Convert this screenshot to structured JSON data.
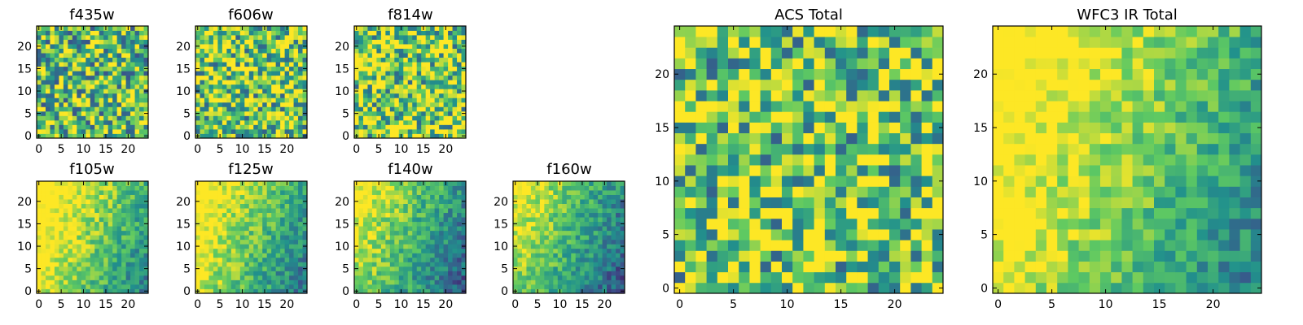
{
  "figure": {
    "description": "Multi-band pixel image panels"
  },
  "chart_data": [
    {
      "type": "heatmap",
      "title": "f435w",
      "grid": [
        25,
        25
      ],
      "xlim": [
        -0.5,
        24.5
      ],
      "ylim": [
        -0.5,
        24.5
      ],
      "xticks": [
        0,
        5,
        10,
        15,
        20
      ],
      "yticks": [
        0,
        5,
        10,
        15,
        20
      ],
      "colormap": "viridis",
      "pattern": "noise",
      "seed": 11,
      "bias": 0.05
    },
    {
      "type": "heatmap",
      "title": "f606w",
      "grid": [
        25,
        25
      ],
      "xlim": [
        -0.5,
        24.5
      ],
      "ylim": [
        -0.5,
        24.5
      ],
      "xticks": [
        0,
        5,
        10,
        15,
        20
      ],
      "yticks": [
        0,
        5,
        10,
        15,
        20
      ],
      "colormap": "viridis",
      "pattern": "noise",
      "seed": 22,
      "bias": 0.1
    },
    {
      "type": "heatmap",
      "title": "f814w",
      "grid": [
        25,
        25
      ],
      "xlim": [
        -0.5,
        24.5
      ],
      "ylim": [
        -0.5,
        24.5
      ],
      "xticks": [
        0,
        5,
        10,
        15,
        20
      ],
      "yticks": [
        0,
        5,
        10,
        15,
        20
      ],
      "colormap": "viridis",
      "pattern": "noise",
      "seed": 33,
      "bias": 0.12
    },
    {
      "type": "heatmap",
      "title": "f105w",
      "grid": [
        25,
        25
      ],
      "xlim": [
        -0.5,
        24.5
      ],
      "ylim": [
        -0.5,
        24.5
      ],
      "xticks": [
        0,
        5,
        10,
        15,
        20
      ],
      "yticks": [
        0,
        5,
        10,
        15,
        20
      ],
      "colormap": "viridis",
      "pattern": "gradient",
      "seed": 44,
      "bias": 0.05
    },
    {
      "type": "heatmap",
      "title": "f125w",
      "grid": [
        25,
        25
      ],
      "xlim": [
        -0.5,
        24.5
      ],
      "ylim": [
        -0.5,
        24.5
      ],
      "xticks": [
        0,
        5,
        10,
        15,
        20
      ],
      "yticks": [
        0,
        5,
        10,
        15,
        20
      ],
      "colormap": "viridis",
      "pattern": "gradient",
      "seed": 55,
      "bias": 0.0
    },
    {
      "type": "heatmap",
      "title": "f140w",
      "grid": [
        25,
        25
      ],
      "xlim": [
        -0.5,
        24.5
      ],
      "ylim": [
        -0.5,
        24.5
      ],
      "xticks": [
        0,
        5,
        10,
        15,
        20
      ],
      "yticks": [
        0,
        5,
        10,
        15,
        20
      ],
      "colormap": "viridis",
      "pattern": "gradient",
      "seed": 66,
      "bias": -0.08
    },
    {
      "type": "heatmap",
      "title": "f160w",
      "grid": [
        25,
        25
      ],
      "xlim": [
        -0.5,
        24.5
      ],
      "ylim": [
        -0.5,
        24.5
      ],
      "xticks": [
        0,
        5,
        10,
        15,
        20
      ],
      "yticks": [
        0,
        5,
        10,
        15,
        20
      ],
      "colormap": "viridis",
      "pattern": "gradient",
      "seed": 77,
      "bias": -0.1
    },
    {
      "type": "heatmap",
      "title": "ACS Total",
      "grid": [
        25,
        25
      ],
      "xlim": [
        -0.5,
        24.5
      ],
      "ylim": [
        -0.5,
        24.5
      ],
      "xticks": [
        0,
        5,
        10,
        15,
        20
      ],
      "yticks": [
        0,
        5,
        10,
        15,
        20
      ],
      "colormap": "viridis",
      "pattern": "noise",
      "seed": 88,
      "bias": 0.1
    },
    {
      "type": "heatmap",
      "title": "WFC3 IR Total",
      "grid": [
        25,
        25
      ],
      "xlim": [
        -0.5,
        24.5
      ],
      "ylim": [
        -0.5,
        24.5
      ],
      "xticks": [
        0,
        5,
        10,
        15,
        20
      ],
      "yticks": [
        0,
        5,
        10,
        15,
        20
      ],
      "colormap": "viridis",
      "pattern": "gradient",
      "seed": 99,
      "bias": 0.05
    }
  ],
  "colors": {
    "axes": "#000000",
    "background": "#ffffff"
  }
}
